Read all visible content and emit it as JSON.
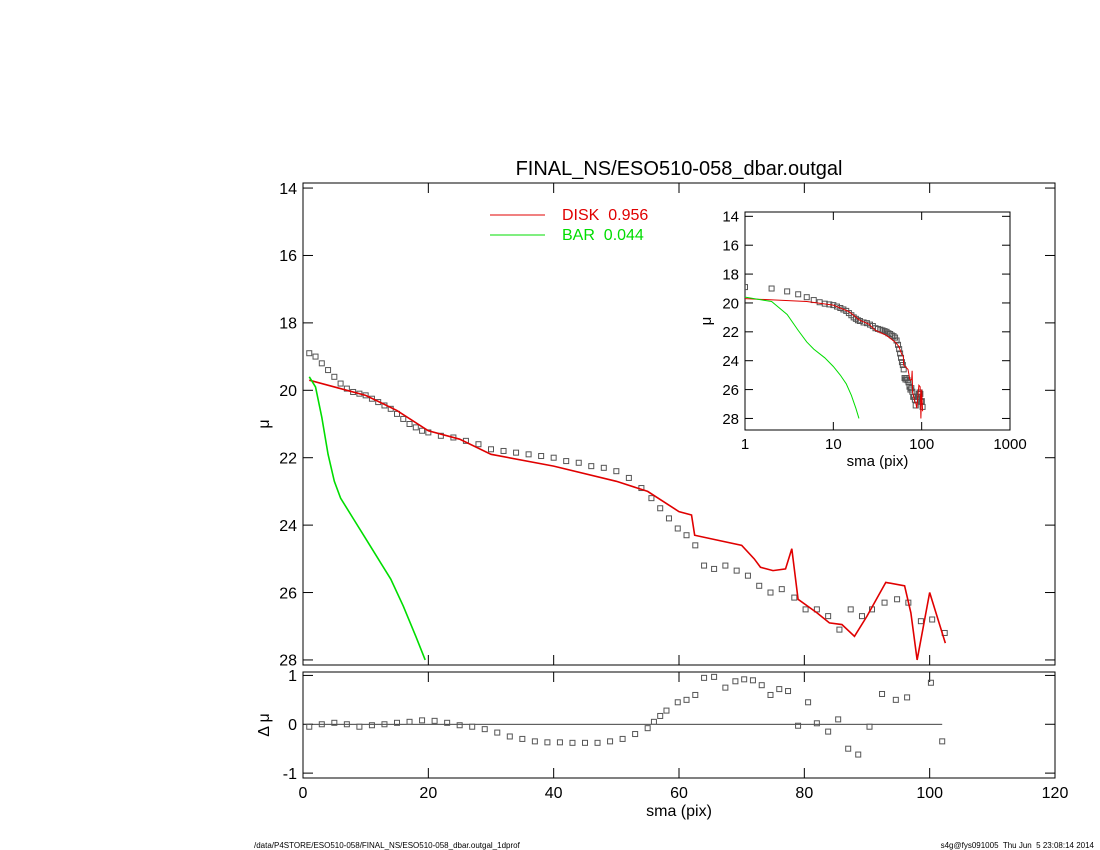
{
  "chart_data": [
    {
      "type": "line",
      "title": "FINAL_NS/ESO510-058_dbar.outgal",
      "ylabel": "μ",
      "xlim": [
        0,
        120
      ],
      "xticks": [
        0,
        20,
        40,
        60,
        80,
        100,
        120
      ],
      "xtick_labels": false,
      "ylim": [
        28.15,
        13.85
      ],
      "yticks": [
        14,
        16,
        18,
        20,
        22,
        24,
        26,
        28
      ],
      "series": [
        {
          "color": "#555555",
          "marker": "square",
          "x": [
            1,
            2,
            3,
            4,
            5,
            6,
            7,
            8,
            9,
            10,
            11,
            12,
            13,
            14,
            15,
            16,
            17,
            18,
            19,
            20,
            22,
            24,
            26,
            28,
            30,
            32,
            34,
            36,
            38,
            40,
            42,
            44,
            46,
            48,
            50,
            52,
            54,
            55.6,
            57,
            58.4,
            59.8,
            61.2,
            62.6,
            64,
            65.6,
            67.4,
            69.2,
            71,
            72.8,
            74.6,
            76.4,
            78.4,
            80.2,
            82,
            83.8,
            85.6,
            87.4,
            89.2,
            90.8,
            92.8,
            94.8,
            96.6,
            98.6,
            100.4,
            102.4
          ],
          "values": [
            18.9,
            19.0,
            19.2,
            19.4,
            19.6,
            19.8,
            19.95,
            20.05,
            20.1,
            20.15,
            20.25,
            20.35,
            20.45,
            20.55,
            20.7,
            20.85,
            21.0,
            21.1,
            21.2,
            21.25,
            21.35,
            21.4,
            21.5,
            21.6,
            21.75,
            21.8,
            21.85,
            21.9,
            21.95,
            22.0,
            22.1,
            22.15,
            22.25,
            22.3,
            22.4,
            22.6,
            22.9,
            23.2,
            23.5,
            23.8,
            24.1,
            24.3,
            24.6,
            25.2,
            25.3,
            25.2,
            25.35,
            25.5,
            25.8,
            26.0,
            25.9,
            26.15,
            26.5,
            26.5,
            26.7,
            27.1,
            26.5,
            26.7,
            26.5,
            26.3,
            26.2,
            26.3,
            26.85,
            26.8,
            27.2
          ]
        },
        {
          "name": "DISK  0.956",
          "color": "#e00000",
          "x": [
            1,
            5,
            10,
            15,
            20,
            25,
            30,
            40,
            50,
            55,
            60,
            62,
            62.5,
            65,
            70,
            72,
            73,
            75,
            77,
            78,
            79,
            82,
            84,
            86,
            88,
            90,
            93,
            96,
            97,
            98,
            100,
            102.5
          ],
          "values": [
            19.7,
            19.9,
            20.15,
            20.6,
            21.2,
            21.45,
            21.9,
            22.25,
            22.7,
            23.0,
            23.6,
            23.7,
            24.3,
            24.4,
            24.6,
            25.0,
            25.25,
            25.35,
            25.3,
            24.7,
            26.2,
            26.6,
            26.9,
            26.95,
            27.3,
            26.7,
            25.7,
            25.8,
            26.6,
            28.0,
            26.0,
            27.5
          ]
        },
        {
          "name": "BAR  0.044",
          "color": "#00dd00",
          "x": [
            1,
            2,
            3,
            4,
            5,
            6,
            8,
            10,
            12,
            14,
            16,
            18,
            19.5
          ],
          "values": [
            19.6,
            19.9,
            20.8,
            21.9,
            22.7,
            23.2,
            23.8,
            24.4,
            25.0,
            25.6,
            26.4,
            27.3,
            28.0
          ]
        }
      ]
    },
    {
      "type": "scatter",
      "xlabel": "sma (pix)",
      "ylabel": "Δ μ",
      "xlim": [
        0,
        120
      ],
      "xticks": [
        0,
        20,
        40,
        60,
        80,
        100,
        120
      ],
      "ylim": [
        -1.1,
        1.07
      ],
      "yticks": [
        -1,
        0,
        1
      ],
      "series": [
        {
          "color": "#555555",
          "marker": "square",
          "x": [
            1,
            3,
            5,
            7,
            9,
            11,
            13,
            15,
            17,
            19,
            21,
            23,
            25,
            27,
            29,
            31,
            33,
            35,
            37,
            39,
            41,
            43,
            45,
            47,
            49,
            51,
            53,
            55,
            56,
            57,
            58,
            59.8,
            61.2,
            62.6,
            64,
            65.6,
            67.4,
            69,
            70.4,
            71.8,
            73.2,
            74.6,
            76,
            77.4,
            79,
            80.6,
            82,
            83.8,
            85.4,
            87,
            88.6,
            90.4,
            92.4,
            94.6,
            96.4,
            100.2,
            102
          ],
          "values": [
            -0.05,
            0.0,
            0.03,
            0.0,
            -0.05,
            -0.02,
            0.0,
            0.03,
            0.05,
            0.08,
            0.07,
            0.03,
            -0.02,
            -0.05,
            -0.1,
            -0.17,
            -0.25,
            -0.3,
            -0.35,
            -0.37,
            -0.37,
            -0.38,
            -0.38,
            -0.38,
            -0.35,
            -0.3,
            -0.2,
            -0.08,
            0.05,
            0.17,
            0.28,
            0.45,
            0.5,
            0.6,
            0.95,
            0.97,
            0.75,
            0.88,
            0.92,
            0.9,
            0.8,
            0.6,
            0.72,
            0.68,
            -0.03,
            0.45,
            0.02,
            -0.15,
            0.1,
            -0.5,
            -0.62,
            -0.05,
            0.62,
            0.5,
            0.55,
            0.85,
            -0.35
          ]
        }
      ]
    },
    {
      "type": "line",
      "xlabel": "sma (pix)",
      "ylabel": "μ",
      "xscale": "log",
      "xlim": [
        1,
        1000
      ],
      "xticks": [
        1,
        10,
        100,
        1000
      ],
      "ylim": [
        28.8,
        13.7
      ],
      "yticks": [
        14,
        16,
        18,
        20,
        22,
        24,
        26,
        28
      ],
      "series": [
        {
          "color": "#555555",
          "marker": "square",
          "x": [
            1,
            2,
            3,
            4,
            5,
            6,
            7,
            8,
            9,
            10,
            11,
            12,
            13,
            14,
            15,
            16,
            17,
            18,
            19,
            20,
            22,
            24,
            26,
            28,
            30,
            32,
            34,
            36,
            38,
            40,
            42,
            44,
            46,
            48,
            50,
            52,
            54,
            55.6,
            57,
            58.4,
            59.8,
            61.2,
            62.6,
            64,
            65.6,
            67.4,
            69.2,
            71,
            72.8,
            74.6,
            76.4,
            78.4,
            80.2,
            82,
            83.8,
            85.6,
            87.4,
            89.2,
            90.8,
            92.8,
            94.8,
            96.6,
            98.6,
            100.4,
            102.4
          ],
          "values": [
            18.9,
            19.0,
            19.2,
            19.4,
            19.6,
            19.8,
            19.95,
            20.05,
            20.1,
            20.15,
            20.25,
            20.35,
            20.45,
            20.55,
            20.7,
            20.85,
            21.0,
            21.1,
            21.2,
            21.25,
            21.35,
            21.4,
            21.5,
            21.6,
            21.75,
            21.8,
            21.85,
            21.9,
            21.95,
            22.0,
            22.1,
            22.15,
            22.25,
            22.3,
            22.4,
            22.6,
            22.9,
            23.2,
            23.5,
            23.8,
            24.1,
            24.3,
            24.6,
            25.2,
            25.3,
            25.2,
            25.35,
            25.5,
            25.8,
            26.0,
            25.9,
            26.15,
            26.5,
            26.5,
            26.7,
            27.1,
            26.5,
            26.7,
            26.5,
            26.3,
            26.2,
            26.3,
            26.85,
            26.8,
            27.2
          ]
        },
        {
          "color": "#e00000",
          "x": [
            1,
            5,
            10,
            15,
            20,
            25,
            30,
            40,
            50,
            55,
            60,
            62,
            62.5,
            65,
            70,
            72,
            73,
            75,
            77,
            78,
            79,
            82,
            84,
            86,
            88,
            90,
            93,
            96,
            97,
            98,
            100,
            102.5
          ],
          "values": [
            19.7,
            19.9,
            20.15,
            20.6,
            21.2,
            21.45,
            21.9,
            22.25,
            22.7,
            23.0,
            23.6,
            23.7,
            24.3,
            24.4,
            24.6,
            25.0,
            25.25,
            25.35,
            25.3,
            24.7,
            26.2,
            26.6,
            26.9,
            26.95,
            27.3,
            26.7,
            25.7,
            25.8,
            26.6,
            28.0,
            26.0,
            27.5
          ]
        },
        {
          "color": "#00dd00",
          "x": [
            1,
            2,
            3,
            4,
            5,
            6,
            8,
            10,
            12,
            14,
            16,
            18,
            19.5
          ],
          "values": [
            19.6,
            19.9,
            20.8,
            21.9,
            22.7,
            23.2,
            23.8,
            24.4,
            25.0,
            25.6,
            26.4,
            27.3,
            28.0
          ]
        }
      ]
    }
  ],
  "footer": {
    "left": "/data/P4STORE/ESO510-058/FINAL_NS/ESO510-058_dbar.outgal_1dprof",
    "right": "s4g@fys091005  Thu Jun  5 23:08:14 2014"
  }
}
